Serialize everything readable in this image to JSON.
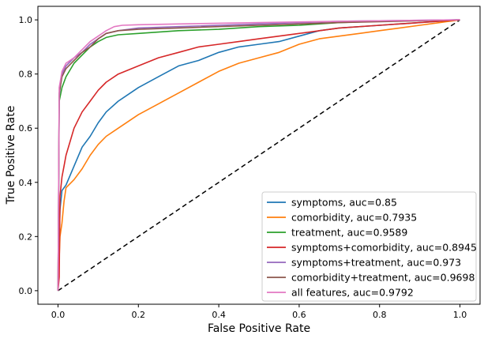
{
  "chart_data": {
    "type": "line",
    "title": "",
    "xlabel": "False Positive Rate",
    "ylabel": "True Positive Rate",
    "xlim": [
      -0.05,
      1.05
    ],
    "ylim": [
      -0.05,
      1.05
    ],
    "xticks": [
      "0.0",
      "0.2",
      "0.4",
      "0.6",
      "0.8",
      "1.0"
    ],
    "yticks": [
      "0.0",
      "0.2",
      "0.4",
      "0.6",
      "0.8",
      "1.0"
    ],
    "grid": false,
    "legend_position": "lower-right",
    "reference_line": {
      "x": [
        0,
        1
      ],
      "y": [
        0,
        1
      ],
      "style": "dashed",
      "color": "#000000"
    },
    "series": [
      {
        "name": "symptoms, auc=0.85",
        "color": "#1f77b4",
        "points": [
          [
            0,
            0
          ],
          [
            0.005,
            0.3
          ],
          [
            0.01,
            0.37
          ],
          [
            0.02,
            0.39
          ],
          [
            0.04,
            0.46
          ],
          [
            0.06,
            0.53
          ],
          [
            0.08,
            0.57
          ],
          [
            0.1,
            0.62
          ],
          [
            0.12,
            0.66
          ],
          [
            0.15,
            0.7
          ],
          [
            0.18,
            0.73
          ],
          [
            0.2,
            0.75
          ],
          [
            0.25,
            0.79
          ],
          [
            0.3,
            0.83
          ],
          [
            0.35,
            0.85
          ],
          [
            0.4,
            0.88
          ],
          [
            0.45,
            0.9
          ],
          [
            0.5,
            0.91
          ],
          [
            0.55,
            0.92
          ],
          [
            0.6,
            0.94
          ],
          [
            0.65,
            0.96
          ],
          [
            0.7,
            0.97
          ],
          [
            0.8,
            0.98
          ],
          [
            0.9,
            0.99
          ],
          [
            1.0,
            1.0
          ]
        ]
      },
      {
        "name": "comorbidity, auc=0.7935",
        "color": "#ff7f0e",
        "points": [
          [
            0,
            0
          ],
          [
            0.005,
            0.2
          ],
          [
            0.01,
            0.25
          ],
          [
            0.015,
            0.33
          ],
          [
            0.02,
            0.38
          ],
          [
            0.04,
            0.41
          ],
          [
            0.06,
            0.45
          ],
          [
            0.08,
            0.5
          ],
          [
            0.1,
            0.54
          ],
          [
            0.12,
            0.57
          ],
          [
            0.15,
            0.6
          ],
          [
            0.2,
            0.65
          ],
          [
            0.25,
            0.69
          ],
          [
            0.3,
            0.73
          ],
          [
            0.35,
            0.77
          ],
          [
            0.4,
            0.81
          ],
          [
            0.45,
            0.84
          ],
          [
            0.5,
            0.86
          ],
          [
            0.55,
            0.88
          ],
          [
            0.6,
            0.91
          ],
          [
            0.65,
            0.93
          ],
          [
            0.7,
            0.94
          ],
          [
            0.75,
            0.95
          ],
          [
            0.8,
            0.96
          ],
          [
            0.85,
            0.97
          ],
          [
            0.9,
            0.98
          ],
          [
            0.95,
            0.99
          ],
          [
            1.0,
            1.0
          ]
        ]
      },
      {
        "name": "treatment, auc=0.9589",
        "color": "#2ca02c",
        "points": [
          [
            0,
            0
          ],
          [
            0.003,
            0.7
          ],
          [
            0.01,
            0.75
          ],
          [
            0.02,
            0.79
          ],
          [
            0.04,
            0.84
          ],
          [
            0.06,
            0.87
          ],
          [
            0.08,
            0.9
          ],
          [
            0.1,
            0.92
          ],
          [
            0.12,
            0.935
          ],
          [
            0.15,
            0.945
          ],
          [
            0.2,
            0.95
          ],
          [
            0.25,
            0.955
          ],
          [
            0.3,
            0.96
          ],
          [
            0.4,
            0.965
          ],
          [
            0.5,
            0.975
          ],
          [
            0.6,
            0.98
          ],
          [
            0.7,
            0.99
          ],
          [
            0.8,
            0.995
          ],
          [
            1.0,
            1.0
          ]
        ]
      },
      {
        "name": "symptoms+comorbidity, auc=0.8945",
        "color": "#d62728",
        "points": [
          [
            0,
            0
          ],
          [
            0.003,
            0.05
          ],
          [
            0.005,
            0.35
          ],
          [
            0.01,
            0.42
          ],
          [
            0.015,
            0.46
          ],
          [
            0.02,
            0.5
          ],
          [
            0.03,
            0.55
          ],
          [
            0.04,
            0.6
          ],
          [
            0.06,
            0.66
          ],
          [
            0.08,
            0.7
          ],
          [
            0.1,
            0.74
          ],
          [
            0.12,
            0.77
          ],
          [
            0.15,
            0.8
          ],
          [
            0.2,
            0.83
          ],
          [
            0.25,
            0.86
          ],
          [
            0.3,
            0.88
          ],
          [
            0.35,
            0.9
          ],
          [
            0.4,
            0.91
          ],
          [
            0.45,
            0.92
          ],
          [
            0.5,
            0.93
          ],
          [
            0.6,
            0.95
          ],
          [
            0.7,
            0.97
          ],
          [
            0.8,
            0.98
          ],
          [
            0.9,
            0.99
          ],
          [
            1.0,
            1.0
          ]
        ]
      },
      {
        "name": "symptoms+treatment, auc=0.973",
        "color": "#9467bd",
        "points": [
          [
            0,
            0
          ],
          [
            0.003,
            0.72
          ],
          [
            0.01,
            0.8
          ],
          [
            0.02,
            0.83
          ],
          [
            0.04,
            0.86
          ],
          [
            0.06,
            0.88
          ],
          [
            0.08,
            0.91
          ],
          [
            0.1,
            0.93
          ],
          [
            0.12,
            0.95
          ],
          [
            0.15,
            0.96
          ],
          [
            0.2,
            0.97
          ],
          [
            0.3,
            0.975
          ],
          [
            0.5,
            0.985
          ],
          [
            0.7,
            0.995
          ],
          [
            1.0,
            1.0
          ]
        ]
      },
      {
        "name": "comorbidity+treatment, auc=0.9698",
        "color": "#8c564b",
        "points": [
          [
            0,
            0
          ],
          [
            0.003,
            0.73
          ],
          [
            0.01,
            0.79
          ],
          [
            0.02,
            0.82
          ],
          [
            0.04,
            0.85
          ],
          [
            0.06,
            0.88
          ],
          [
            0.08,
            0.9
          ],
          [
            0.1,
            0.93
          ],
          [
            0.12,
            0.95
          ],
          [
            0.15,
            0.96
          ],
          [
            0.2,
            0.965
          ],
          [
            0.3,
            0.97
          ],
          [
            0.5,
            0.98
          ],
          [
            0.7,
            0.99
          ],
          [
            1.0,
            1.0
          ]
        ]
      },
      {
        "name": "all features, auc=0.9792",
        "color": "#e377c2",
        "points": [
          [
            0,
            0
          ],
          [
            0.003,
            0.75
          ],
          [
            0.01,
            0.81
          ],
          [
            0.02,
            0.84
          ],
          [
            0.04,
            0.86
          ],
          [
            0.06,
            0.89
          ],
          [
            0.08,
            0.92
          ],
          [
            0.1,
            0.94
          ],
          [
            0.12,
            0.96
          ],
          [
            0.14,
            0.975
          ],
          [
            0.16,
            0.98
          ],
          [
            0.2,
            0.982
          ],
          [
            0.3,
            0.985
          ],
          [
            0.5,
            0.99
          ],
          [
            0.7,
            0.995
          ],
          [
            1.0,
            1.0
          ]
        ]
      }
    ]
  }
}
